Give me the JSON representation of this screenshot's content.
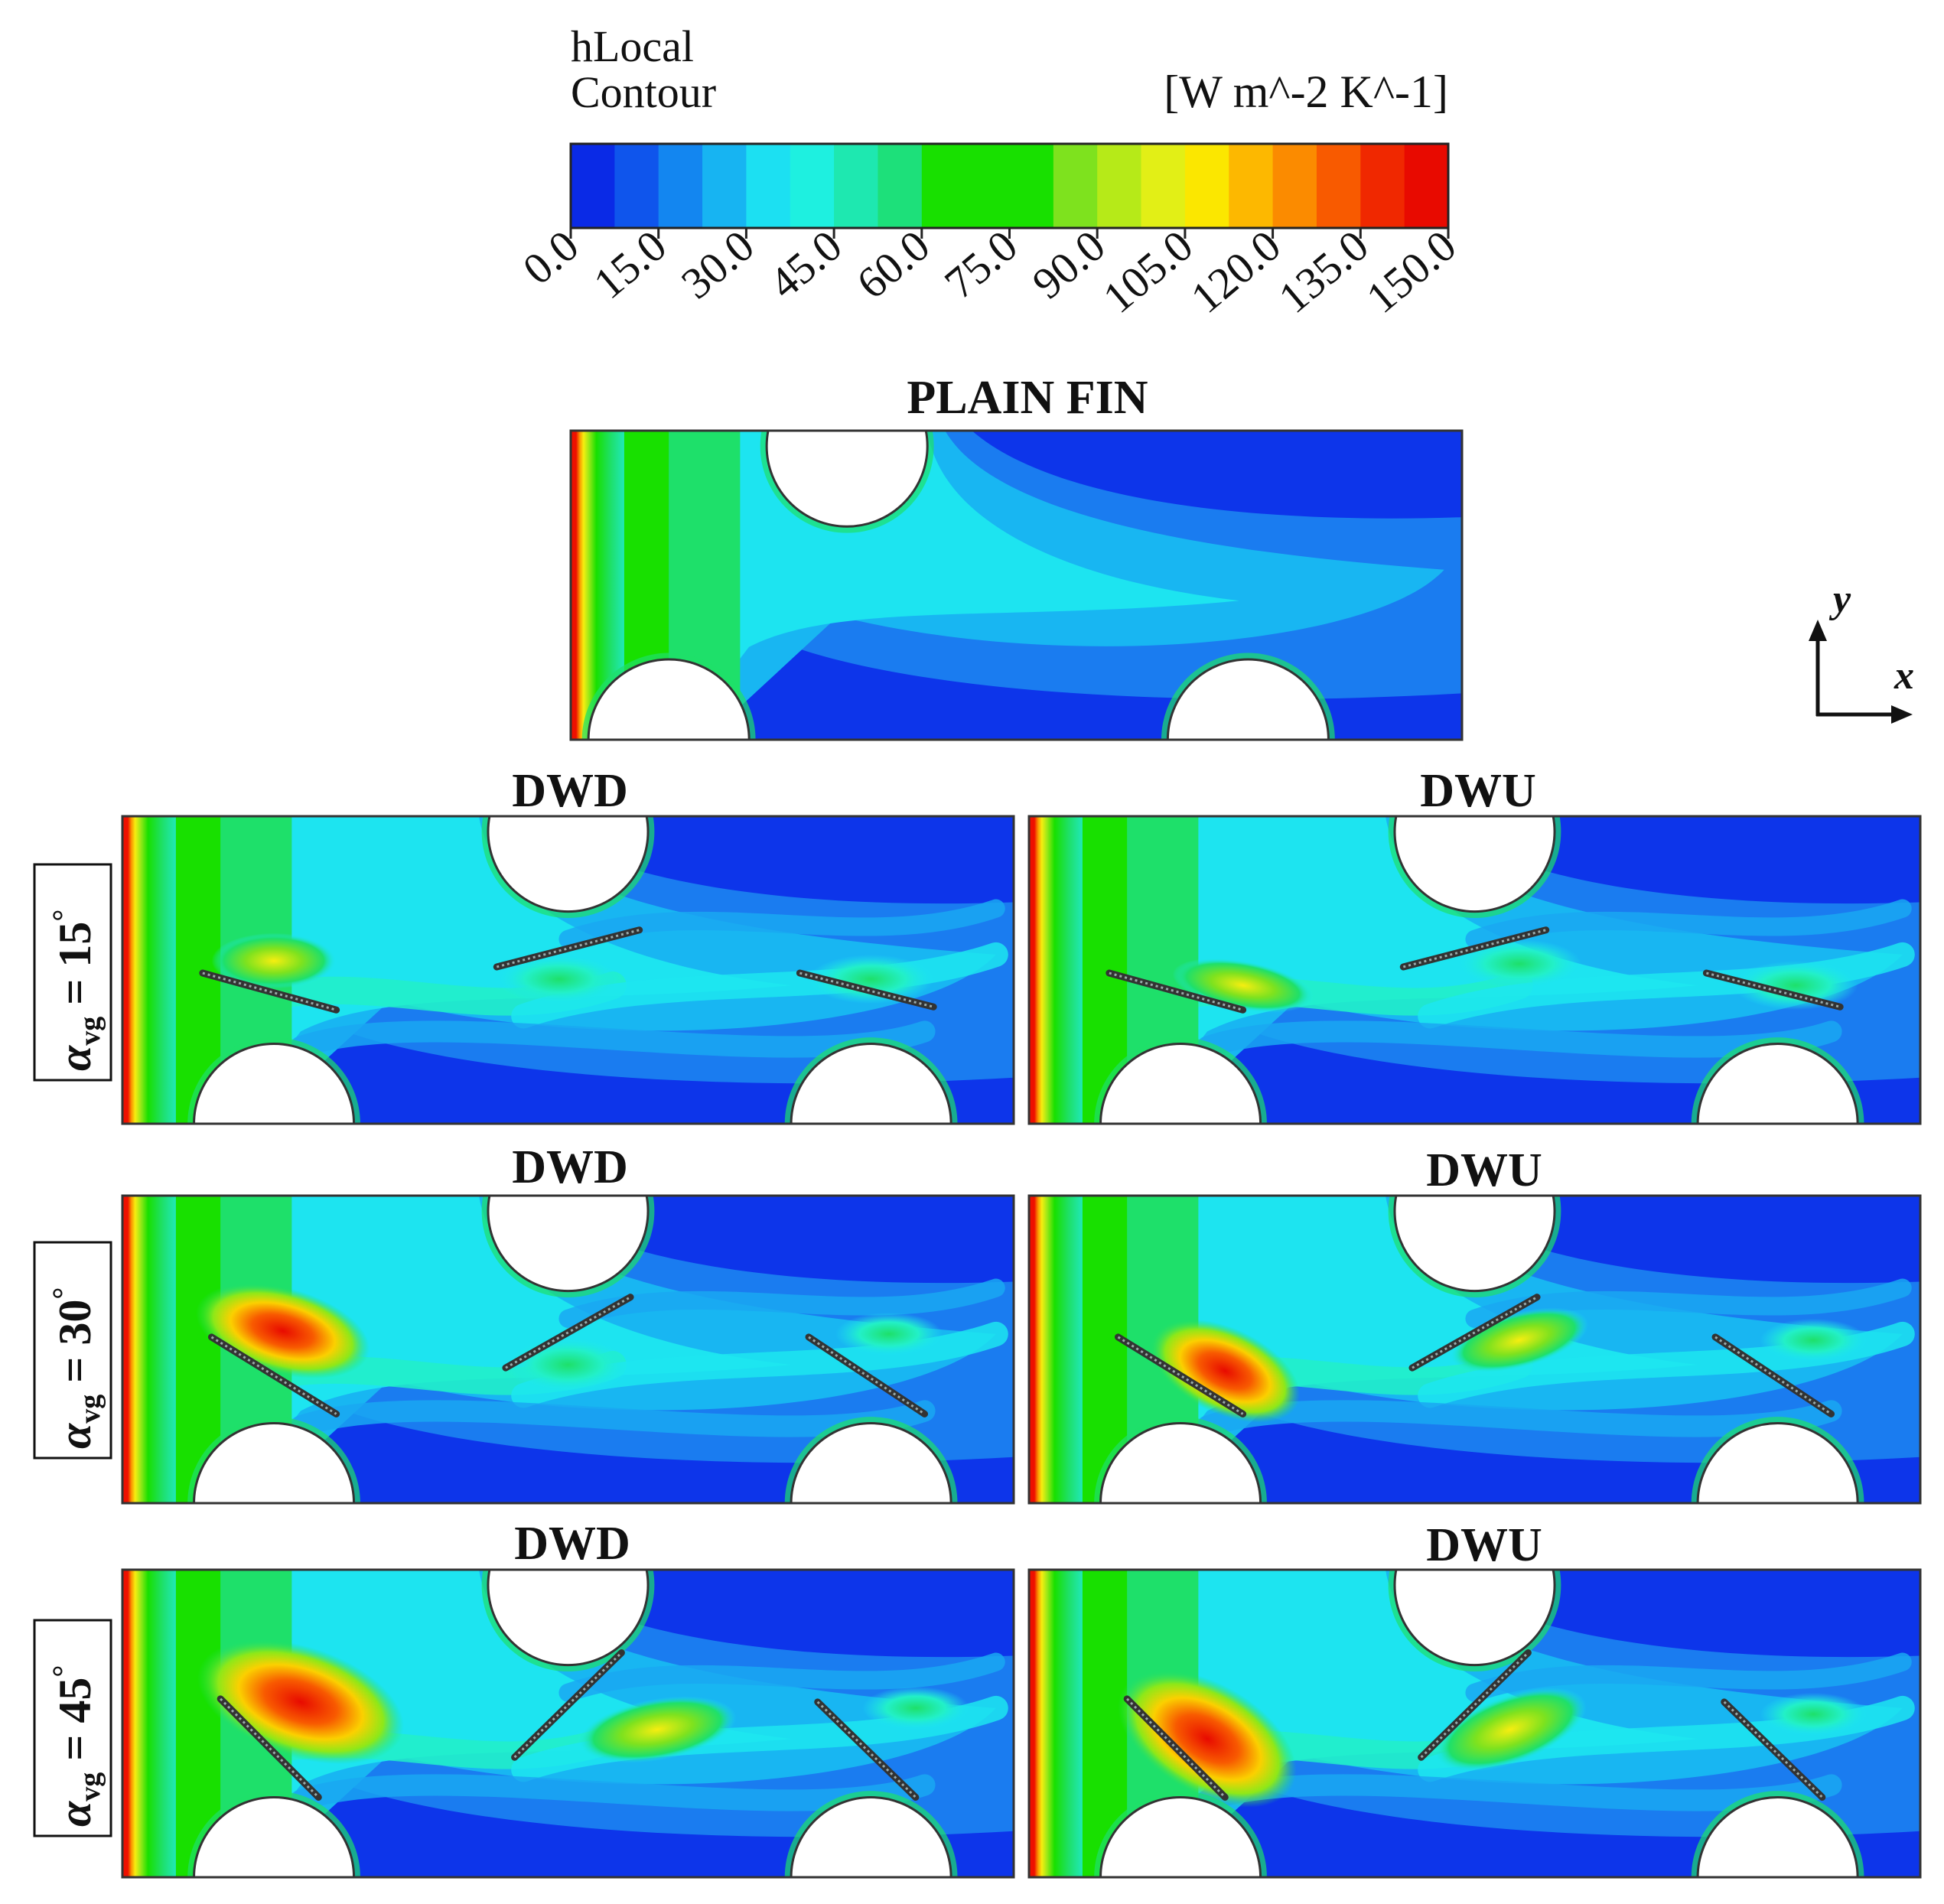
{
  "colorbar": {
    "title_line1": "hLocal",
    "title_line2": "Contour",
    "unit": "[W m^-2 K^-1]",
    "ticks": [
      "0.0",
      "15.0",
      "30.0",
      "45.0",
      "60.0",
      "75.0",
      "90.0",
      "105.0",
      "120.0",
      "135.0",
      "150.0"
    ],
    "colors": [
      "#0a2ae6",
      "#0f55ec",
      "#1386f0",
      "#17b4f2",
      "#1ce0f2",
      "#1ef0e0",
      "#1ee8b0",
      "#1de07a",
      "#18e000",
      "#18e000",
      "#18e000",
      "#7ee21e",
      "#b6ea18",
      "#e2ef16",
      "#fbe700",
      "#fdb800",
      "#fb8b00",
      "#f85a00",
      "#f02800",
      "#e80a00"
    ]
  },
  "axes_indicator": {
    "y_label": "y",
    "x_label": "x"
  },
  "plain_fin": {
    "title": "PLAIN FIN"
  },
  "column_titles": {
    "dwd": "DWD",
    "dwu": "DWU"
  },
  "rows": [
    {
      "alpha": "15",
      "prefix": "α",
      "sub": "vg",
      "eq": " = ",
      "deg": "°"
    },
    {
      "alpha": "30",
      "prefix": "α",
      "sub": "vg",
      "eq": " = ",
      "deg": "°"
    },
    {
      "alpha": "45",
      "prefix": "α",
      "sub": "vg",
      "eq": " = ",
      "deg": "°"
    }
  ],
  "palette": {
    "deep_blue": "#0a28e8",
    "blue": "#1064ee",
    "light_blue": "#1aa8f2",
    "cyan": "#1de6f0",
    "aqua": "#22f0c8",
    "green": "#1ee06a",
    "bright_green": "#18e000",
    "yellow": "#f6ee10",
    "orange": "#fb9800",
    "red": "#ee1000"
  }
}
